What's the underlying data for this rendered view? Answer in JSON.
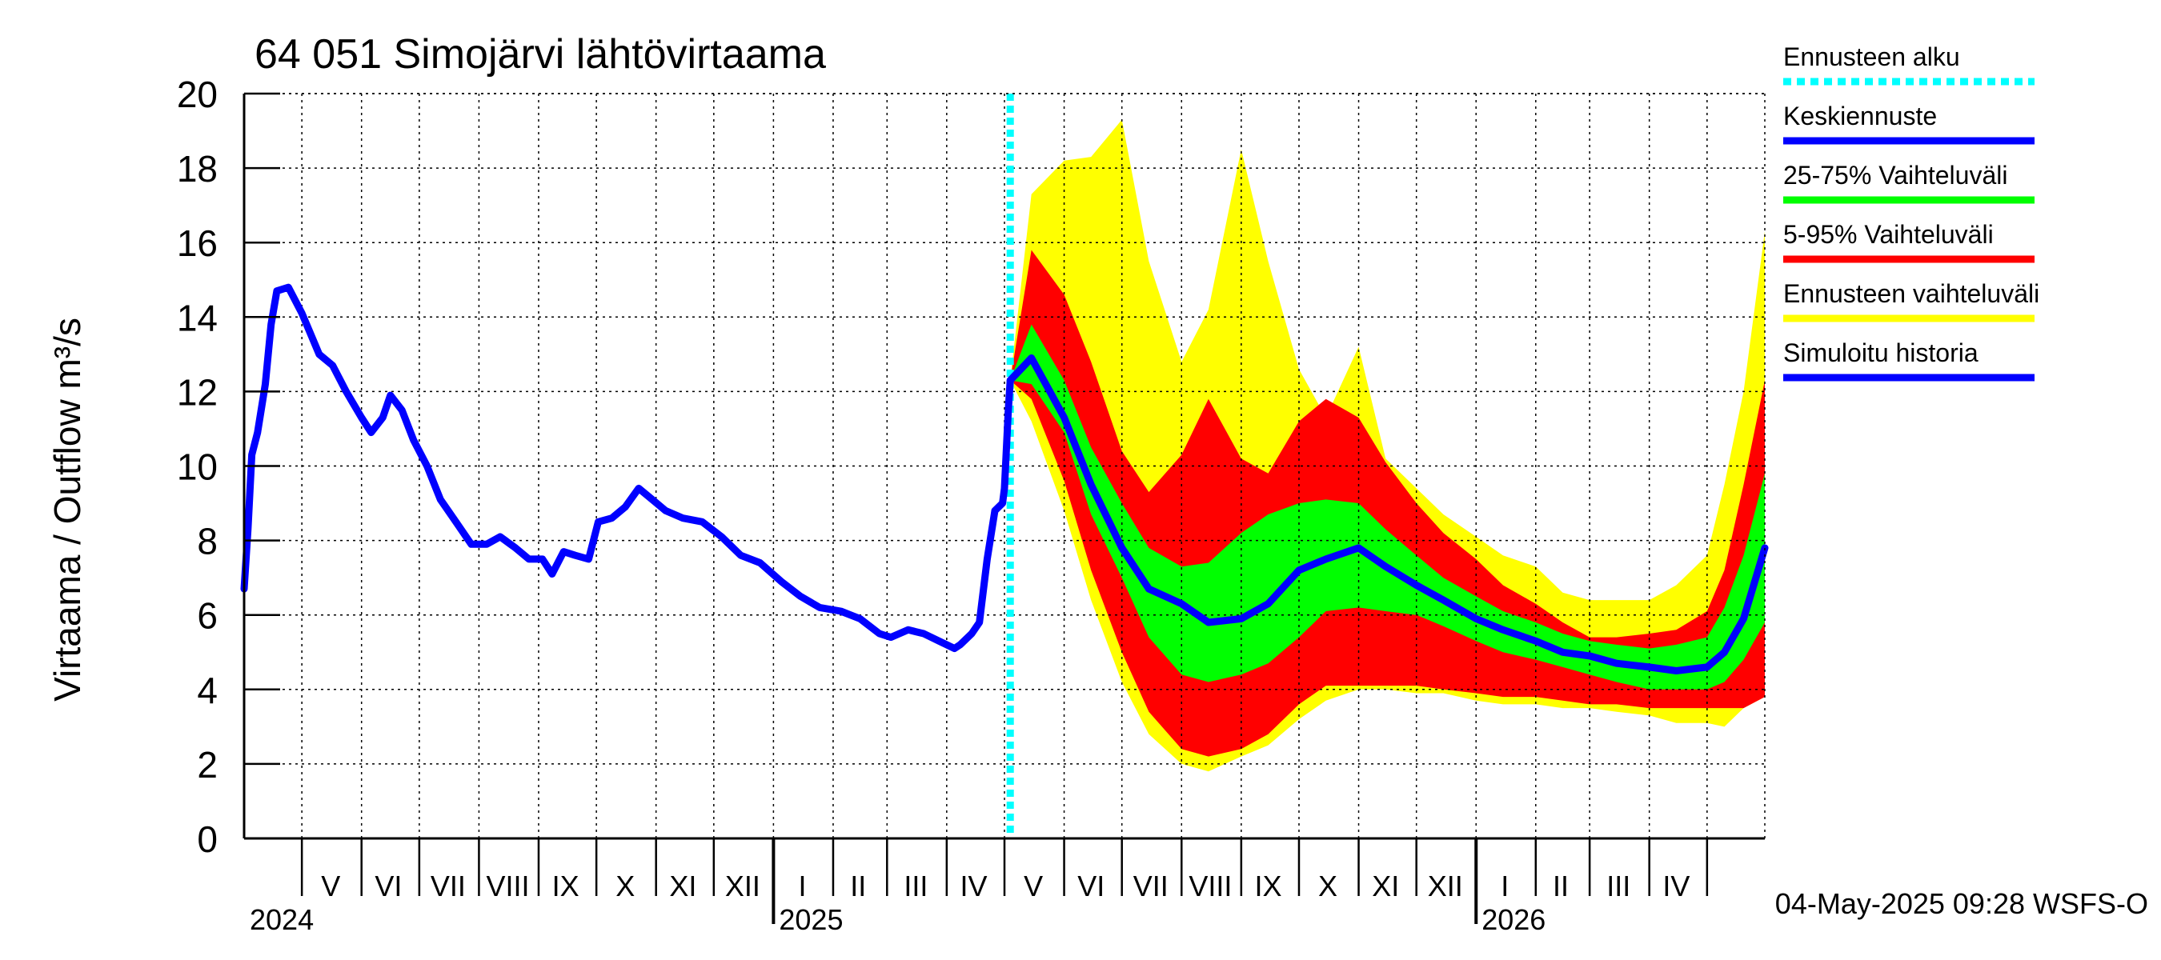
{
  "chart_data": {
    "type": "area",
    "title": "64 051 Simojärvi lähtövirtaama",
    "ylabel": "Virtaama / Outflow    m³/s",
    "ylim": [
      0,
      20
    ],
    "yticks": [
      "0",
      "2",
      "4",
      "6",
      "8",
      "10",
      "12",
      "14",
      "16",
      "18",
      "20"
    ],
    "x_range": [
      "2024-04-01",
      "2026-05-31"
    ],
    "forecast_start": "2025-05-04",
    "month_labels": [
      {
        "label": "V",
        "date": "2024-05-16"
      },
      {
        "label": "VI",
        "date": "2024-06-15"
      },
      {
        "label": "VII",
        "date": "2024-07-16"
      },
      {
        "label": "VIII",
        "date": "2024-08-16"
      },
      {
        "label": "IX",
        "date": "2024-09-15"
      },
      {
        "label": "X",
        "date": "2024-10-16"
      },
      {
        "label": "XI",
        "date": "2024-11-15"
      },
      {
        "label": "XII",
        "date": "2024-12-16"
      },
      {
        "label": "I",
        "date": "2025-01-16"
      },
      {
        "label": "II",
        "date": "2025-02-14"
      },
      {
        "label": "III",
        "date": "2025-03-16"
      },
      {
        "label": "IV",
        "date": "2025-04-15"
      },
      {
        "label": "V",
        "date": "2025-05-16"
      },
      {
        "label": "VI",
        "date": "2025-06-15"
      },
      {
        "label": "VII",
        "date": "2025-07-16"
      },
      {
        "label": "VIII",
        "date": "2025-08-16"
      },
      {
        "label": "IX",
        "date": "2025-09-15"
      },
      {
        "label": "X",
        "date": "2025-10-16"
      },
      {
        "label": "XI",
        "date": "2025-11-15"
      },
      {
        "label": "XII",
        "date": "2025-12-16"
      },
      {
        "label": "I",
        "date": "2026-01-16"
      },
      {
        "label": "II",
        "date": "2026-02-14"
      },
      {
        "label": "III",
        "date": "2026-03-16"
      },
      {
        "label": "IV",
        "date": "2026-04-15"
      }
    ],
    "year_labels": [
      {
        "label": "2024",
        "date": "2024-04-01"
      },
      {
        "label": "2025",
        "date": "2025-01-01"
      },
      {
        "label": "2026",
        "date": "2026-01-01"
      }
    ],
    "history": {
      "name": "Simuloitu historia",
      "color": "#0000ff",
      "points": [
        [
          "2024-04-01",
          6.7
        ],
        [
          "2024-04-03",
          8.3
        ],
        [
          "2024-04-05",
          10.3
        ],
        [
          "2024-04-08",
          10.9
        ],
        [
          "2024-04-12",
          12.2
        ],
        [
          "2024-04-15",
          13.8
        ],
        [
          "2024-04-18",
          14.7
        ],
        [
          "2024-04-24",
          14.8
        ],
        [
          "2024-05-01",
          14.1
        ],
        [
          "2024-05-10",
          13.0
        ],
        [
          "2024-05-17",
          12.7
        ],
        [
          "2024-05-24",
          12.0
        ],
        [
          "2024-06-01",
          11.3
        ],
        [
          "2024-06-06",
          10.9
        ],
        [
          "2024-06-12",
          11.3
        ],
        [
          "2024-06-16",
          11.9
        ],
        [
          "2024-06-22",
          11.5
        ],
        [
          "2024-06-28",
          10.7
        ],
        [
          "2024-07-05",
          10.0
        ],
        [
          "2024-07-12",
          9.1
        ],
        [
          "2024-07-20",
          8.5
        ],
        [
          "2024-07-28",
          7.9
        ],
        [
          "2024-08-05",
          7.9
        ],
        [
          "2024-08-12",
          8.1
        ],
        [
          "2024-08-20",
          7.8
        ],
        [
          "2024-08-27",
          7.5
        ],
        [
          "2024-09-03",
          7.5
        ],
        [
          "2024-09-08",
          7.1
        ],
        [
          "2024-09-14",
          7.7
        ],
        [
          "2024-09-20",
          7.6
        ],
        [
          "2024-09-27",
          7.5
        ],
        [
          "2024-10-02",
          8.5
        ],
        [
          "2024-10-09",
          8.6
        ],
        [
          "2024-10-16",
          8.9
        ],
        [
          "2024-10-23",
          9.4
        ],
        [
          "2024-10-30",
          9.1
        ],
        [
          "2024-11-06",
          8.8
        ],
        [
          "2024-11-15",
          8.6
        ],
        [
          "2024-11-25",
          8.5
        ],
        [
          "2024-12-05",
          8.1
        ],
        [
          "2024-12-15",
          7.6
        ],
        [
          "2024-12-25",
          7.4
        ],
        [
          "2025-01-05",
          6.9
        ],
        [
          "2025-01-15",
          6.5
        ],
        [
          "2025-01-25",
          6.2
        ],
        [
          "2025-02-05",
          6.1
        ],
        [
          "2025-02-15",
          5.9
        ],
        [
          "2025-02-25",
          5.5
        ],
        [
          "2025-03-03",
          5.4
        ],
        [
          "2025-03-12",
          5.6
        ],
        [
          "2025-03-20",
          5.5
        ],
        [
          "2025-03-28",
          5.3
        ],
        [
          "2025-04-05",
          5.1
        ],
        [
          "2025-04-08",
          5.2
        ],
        [
          "2025-04-14",
          5.5
        ],
        [
          "2025-04-18",
          5.8
        ],
        [
          "2025-04-22",
          7.5
        ],
        [
          "2025-04-26",
          8.8
        ],
        [
          "2025-04-30",
          9.0
        ],
        [
          "2025-05-01",
          9.4
        ],
        [
          "2025-05-03",
          11.5
        ],
        [
          "2025-05-04",
          12.3
        ]
      ]
    },
    "forecast_dates": [
      "2025-05-04",
      "2025-05-15",
      "2025-06-01",
      "2025-06-15",
      "2025-07-01",
      "2025-07-15",
      "2025-08-01",
      "2025-08-15",
      "2025-09-01",
      "2025-09-15",
      "2025-10-01",
      "2025-10-15",
      "2025-11-01",
      "2025-11-15",
      "2025-12-01",
      "2025-12-15",
      "2026-01-01",
      "2026-01-15",
      "2026-02-01",
      "2026-02-15",
      "2026-03-01",
      "2026-03-15",
      "2026-04-01",
      "2026-04-15",
      "2026-05-01",
      "2026-05-10",
      "2026-05-20",
      "2026-05-31"
    ],
    "series": [
      {
        "name": "Ennusteen vaihteluväli",
        "color": "#ffff00",
        "lower": [
          12.3,
          11.2,
          8.8,
          6.4,
          4.2,
          2.8,
          2.0,
          1.8,
          2.2,
          2.5,
          3.2,
          3.7,
          4.0,
          4.0,
          3.9,
          3.9,
          3.7,
          3.6,
          3.6,
          3.5,
          3.5,
          3.4,
          3.3,
          3.1,
          3.1,
          3.0,
          3.5,
          3.8
        ],
        "upper": [
          12.3,
          17.3,
          18.2,
          18.3,
          19.3,
          15.5,
          12.8,
          14.2,
          18.5,
          15.5,
          12.6,
          11.3,
          13.2,
          10.2,
          9.4,
          8.7,
          8.1,
          7.6,
          7.3,
          6.6,
          6.4,
          6.4,
          6.4,
          6.8,
          7.6,
          9.5,
          12.0,
          16.3
        ]
      },
      {
        "name": "5-95% Vaihteluväli",
        "color": "#ff0000",
        "lower": [
          12.3,
          11.8,
          9.6,
          7.2,
          5.0,
          3.4,
          2.4,
          2.2,
          2.4,
          2.8,
          3.6,
          4.1,
          4.1,
          4.1,
          4.1,
          4.0,
          3.9,
          3.8,
          3.8,
          3.7,
          3.6,
          3.6,
          3.5,
          3.5,
          3.5,
          3.5,
          3.5,
          3.8
        ],
        "upper": [
          12.3,
          15.8,
          14.6,
          12.8,
          10.4,
          9.3,
          10.3,
          11.8,
          10.2,
          9.8,
          11.2,
          11.8,
          11.3,
          10.1,
          9.0,
          8.2,
          7.5,
          6.8,
          6.3,
          5.8,
          5.4,
          5.4,
          5.5,
          5.6,
          6.1,
          7.2,
          9.5,
          12.3
        ]
      },
      {
        "name": "25-75% Vaihteluväli",
        "color": "#00ff00",
        "lower": [
          12.3,
          12.2,
          10.9,
          8.7,
          7.0,
          5.4,
          4.4,
          4.2,
          4.4,
          4.7,
          5.4,
          6.1,
          6.2,
          6.1,
          6.0,
          5.7,
          5.3,
          5.0,
          4.8,
          4.6,
          4.4,
          4.2,
          4.0,
          4.0,
          4.0,
          4.2,
          4.8,
          5.8
        ],
        "upper": [
          12.3,
          13.8,
          12.3,
          10.5,
          9.0,
          7.8,
          7.3,
          7.4,
          8.2,
          8.7,
          9.0,
          9.1,
          9.0,
          8.3,
          7.6,
          7.0,
          6.5,
          6.1,
          5.8,
          5.5,
          5.3,
          5.2,
          5.1,
          5.2,
          5.4,
          6.2,
          7.6,
          9.8
        ]
      },
      {
        "name": "Keskiennuste",
        "color": "#0000ff",
        "values": [
          12.3,
          12.9,
          11.3,
          9.5,
          7.8,
          6.7,
          6.3,
          5.8,
          5.9,
          6.3,
          7.2,
          7.5,
          7.8,
          7.3,
          6.8,
          6.4,
          5.9,
          5.6,
          5.3,
          5.0,
          4.9,
          4.7,
          4.6,
          4.5,
          4.6,
          5.0,
          5.9,
          7.8
        ]
      }
    ],
    "legend": [
      {
        "label": "Ennusteen alku",
        "color": "#00ffff",
        "style": "dotted"
      },
      {
        "label": "Keskiennuste",
        "color": "#0000ff",
        "style": "solid"
      },
      {
        "label": "25-75% Vaihteluväli",
        "color": "#00ff00",
        "style": "solid"
      },
      {
        "label": "5-95% Vaihteluväli",
        "color": "#ff0000",
        "style": "solid"
      },
      {
        "label": "Ennusteen vaihteluväli",
        "color": "#ffff00",
        "style": "solid"
      },
      {
        "label": "Simuloitu historia",
        "color": "#0000ff",
        "style": "solid"
      }
    ],
    "legend_position": "right",
    "grid": true,
    "footer": "04-May-2025 09:28 WSFS-O"
  }
}
